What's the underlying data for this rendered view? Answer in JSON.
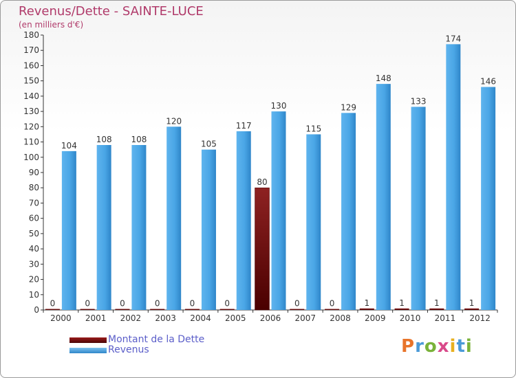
{
  "header": {
    "title": "Revenus/Dette - SAINTE-LUCE",
    "subtitle": "(en milliers d'€)"
  },
  "legend": [
    {
      "label": "Montant de la Dette",
      "color": "#6b0a0a"
    },
    {
      "label": "Revenus",
      "color": "#4aa6e6"
    }
  ],
  "logo": {
    "text": "Proxiti"
  },
  "chart_data": {
    "type": "bar",
    "categories": [
      "2000",
      "2001",
      "2002",
      "2003",
      "2004",
      "2005",
      "2006",
      "2007",
      "2008",
      "2009",
      "2010",
      "2011",
      "2012"
    ],
    "series": [
      {
        "name": "Montant de la Dette",
        "color": "#6b0a0a",
        "values": [
          0,
          0,
          0,
          0,
          0,
          0,
          80,
          0,
          0,
          1,
          1,
          1,
          1
        ]
      },
      {
        "name": "Revenus",
        "color": "#4aa6e6",
        "values": [
          104,
          108,
          108,
          120,
          105,
          117,
          130,
          115,
          129,
          148,
          133,
          174,
          146
        ]
      }
    ],
    "ylim": [
      0,
      180
    ],
    "yticks": [
      0,
      10,
      20,
      30,
      40,
      50,
      60,
      70,
      80,
      90,
      100,
      110,
      120,
      130,
      140,
      150,
      160,
      170,
      180
    ],
    "grid": false,
    "xlabel": "",
    "ylabel": ""
  }
}
